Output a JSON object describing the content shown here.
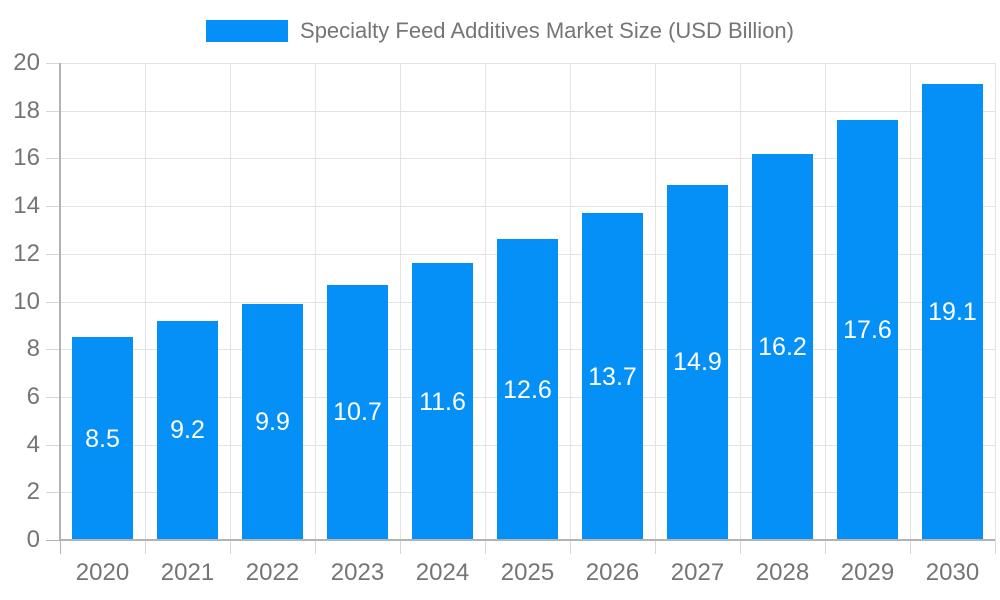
{
  "legend": {
    "label": "Specialty Feed Additives Market Size (USD Billion)"
  },
  "colors": {
    "bar": "#0590f8",
    "axis_text": "#757575",
    "grid": "#e3e3e3",
    "axis_line": "#b2b2b2",
    "value_label": "#ffffff",
    "background": "#ffffff"
  },
  "chart_data": {
    "type": "bar",
    "title": "Specialty Feed Additives Market Size (USD Billion)",
    "categories": [
      "2020",
      "2021",
      "2022",
      "2023",
      "2024",
      "2025",
      "2026",
      "2027",
      "2028",
      "2029",
      "2030"
    ],
    "values": [
      8.5,
      9.2,
      9.9,
      10.7,
      11.6,
      12.6,
      13.7,
      14.9,
      16.2,
      17.6,
      19.1
    ],
    "value_labels": [
      "8.5",
      "9.2",
      "9.9",
      "10.7",
      "11.6",
      "12.6",
      "13.7",
      "14.9",
      "16.2",
      "17.6",
      "19.1"
    ],
    "xlabel": "",
    "ylabel": "",
    "ylim": [
      0,
      20
    ],
    "yticks": [
      0,
      2,
      4,
      6,
      8,
      10,
      12,
      14,
      16,
      18,
      20
    ],
    "grid": true,
    "legend_position": "top",
    "bar_color": "#0590f8",
    "value_label_position": "inside-center"
  }
}
